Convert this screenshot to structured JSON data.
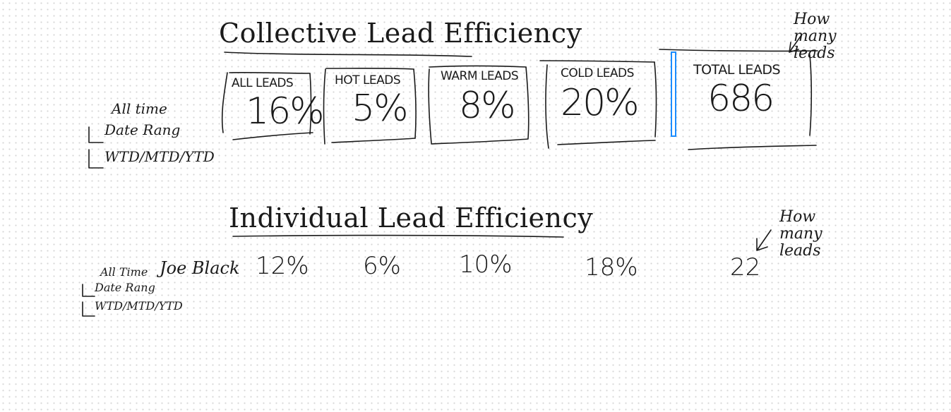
{
  "collective": {
    "title": "Collective Lead Efficiency",
    "filter_notes": [
      "All time",
      "Date Rang",
      "WTD/MTD/YTD"
    ],
    "cards": [
      {
        "label": "ALL LEADS",
        "value": "16%"
      },
      {
        "label": "HOT LEADS",
        "value": "5%"
      },
      {
        "label": "WARM LEADS",
        "value": "8%"
      },
      {
        "label": "COLD LEADS",
        "value": "20%"
      },
      {
        "label": "TOTAL LEADS",
        "value": "686"
      }
    ],
    "annotation": "How\nmany\nleads"
  },
  "individual": {
    "title": "Individual Lead Efficiency",
    "filter_notes": [
      "All Time",
      "Date Rang",
      "WTD/MTD/YTD"
    ],
    "row": {
      "name": "Joe Black",
      "values": [
        "12%",
        "6%",
        "10%",
        "18%",
        "22"
      ]
    },
    "annotation": "How\nmany\nleads"
  },
  "colors": {
    "ink": "#1a1a1a",
    "selection": "#1a8cff",
    "grid_dot": "#d6d6d6"
  }
}
